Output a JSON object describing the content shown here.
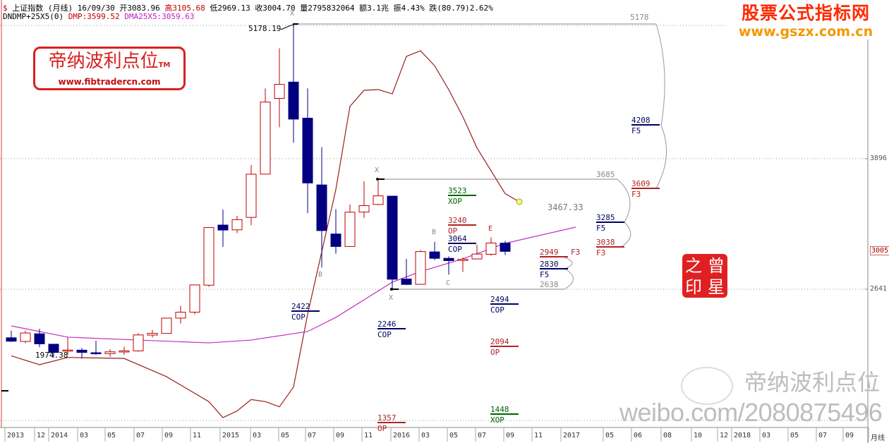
{
  "header": {
    "symbol_icon": "dollar-icon",
    "name": "上证指数",
    "period": "(月线)",
    "date": "16/09/30",
    "open": "开3083.96",
    "high": "高3105.68",
    "low": "低2969.13",
    "close": "收3004.70",
    "volume": "量2795832064",
    "amount": "额3.1兆",
    "amplitude": "振4.43%",
    "change": "跌(80.79)2.62%",
    "indicator": "DNDMP+25X5(0)",
    "dmp": "DMP:3599.52",
    "dma": "DMA25X5:3059.63"
  },
  "watermarks": {
    "site_title": "股票公式指标网",
    "site_url": "www.gszx.com.cn",
    "logo_title": "帝纳波利点位",
    "logo_tm": "TM",
    "logo_url": "www.fibtradercn.com",
    "seal": [
      "之",
      "曾",
      "印",
      "星"
    ],
    "weibo_name": "帝纳波利点位",
    "weibo_url": "weibo.com/2080875496"
  },
  "colors": {
    "up": "#c00000",
    "down": "#000080",
    "dmp": "#9b1c1c",
    "dma": "#c030c0",
    "op": "#b22222",
    "cop": "#000060",
    "xop": "#006400",
    "grid": "#888888"
  },
  "chart_data": {
    "type": "candlestick",
    "period": "monthly",
    "y_axis_ticks": [
      "3896",
      "3005",
      "2641"
    ],
    "x_axis_labels": [
      "2013",
      "12",
      "2014",
      "03",
      "05",
      "07",
      "09",
      "11",
      "2015",
      "03",
      "05",
      "07",
      "09",
      "11",
      "2016",
      "03",
      "05",
      "07",
      "09",
      "11",
      "2017",
      "05",
      "06",
      "08",
      "10",
      "12",
      "2018",
      "03",
      "05",
      "07",
      "09",
      "月线"
    ],
    "candles": [
      {
        "d": "2013-10",
        "o": 2174,
        "h": 2242,
        "l": 2134,
        "c": 2141
      },
      {
        "d": "2013-11",
        "o": 2139,
        "h": 2244,
        "l": 2123,
        "c": 2220
      },
      {
        "d": "2013-12",
        "o": 2212,
        "h": 2260,
        "l": 2084,
        "c": 2116
      },
      {
        "d": "2014-01",
        "o": 2112,
        "h": 2113,
        "l": 1984,
        "c": 2033
      },
      {
        "d": "2014-02",
        "o": 2046,
        "h": 2177,
        "l": 2012,
        "c": 2056
      },
      {
        "d": "2014-03",
        "o": 2055,
        "h": 2075,
        "l": 1974,
        "c": 2033
      },
      {
        "d": "2014-04",
        "o": 2030,
        "h": 2146,
        "l": 2010,
        "c": 2026
      },
      {
        "d": "2014-05",
        "o": 2022,
        "h": 2063,
        "l": 1991,
        "c": 2039
      },
      {
        "d": "2014-06",
        "o": 2037,
        "h": 2088,
        "l": 2010,
        "c": 2048
      },
      {
        "d": "2014-07",
        "o": 2048,
        "h": 2218,
        "l": 2041,
        "c": 2201
      },
      {
        "d": "2014-08",
        "o": 2200,
        "h": 2248,
        "l": 2176,
        "c": 2217
      },
      {
        "d": "2014-09",
        "o": 2216,
        "h": 2366,
        "l": 2216,
        "c": 2363
      },
      {
        "d": "2014-10",
        "o": 2363,
        "h": 2482,
        "l": 2311,
        "c": 2420
      },
      {
        "d": "2014-11",
        "o": 2420,
        "h": 2684,
        "l": 2400,
        "c": 2682
      },
      {
        "d": "2014-12",
        "o": 2680,
        "h": 3239,
        "l": 2664,
        "c": 3234
      },
      {
        "d": "2015-01",
        "o": 3258,
        "h": 3406,
        "l": 3049,
        "c": 3210
      },
      {
        "d": "2015-02",
        "o": 3212,
        "h": 3347,
        "l": 3180,
        "c": 3310
      },
      {
        "d": "2015-03",
        "o": 3332,
        "h": 3835,
        "l": 3257,
        "c": 3747
      },
      {
        "d": "2015-04",
        "o": 3748,
        "h": 4572,
        "l": 3745,
        "c": 4441
      },
      {
        "d": "2015-05",
        "o": 4476,
        "h": 4958,
        "l": 4199,
        "c": 4611
      },
      {
        "d": "2015-06",
        "o": 4633,
        "h": 5178,
        "l": 4050,
        "c": 4277
      },
      {
        "d": "2015-07",
        "o": 4286,
        "h": 4572,
        "l": 3373,
        "c": 3663
      },
      {
        "d": "2015-08",
        "o": 3644,
        "h": 4006,
        "l": 2850,
        "c": 3205
      },
      {
        "d": "2015-09",
        "o": 3172,
        "h": 3411,
        "l": 2983,
        "c": 3052
      },
      {
        "d": "2015-10",
        "o": 3052,
        "h": 3456,
        "l": 3051,
        "c": 3382
      },
      {
        "d": "2015-11",
        "o": 3383,
        "h": 3678,
        "l": 3327,
        "c": 3445
      },
      {
        "d": "2015-12",
        "o": 3456,
        "h": 3684,
        "l": 3450,
        "c": 3539
      },
      {
        "d": "2016-01",
        "o": 3536,
        "h": 3539,
        "l": 2638,
        "c": 2737
      },
      {
        "d": "2016-02",
        "o": 2739,
        "h": 2933,
        "l": 2682,
        "c": 2687
      },
      {
        "d": "2016-03",
        "o": 2688,
        "h": 3018,
        "l": 2688,
        "c": 3003
      },
      {
        "d": "2016-04",
        "o": 3000,
        "h": 3097,
        "l": 2920,
        "c": 2938
      },
      {
        "d": "2016-05",
        "o": 2938,
        "h": 2957,
        "l": 2781,
        "c": 2916
      },
      {
        "d": "2016-06",
        "o": 2917,
        "h": 2945,
        "l": 2807,
        "c": 2929
      },
      {
        "d": "2016-07",
        "o": 2932,
        "h": 3069,
        "l": 2929,
        "c": 2979
      },
      {
        "d": "2016-08",
        "o": 2977,
        "h": 3140,
        "l": 2965,
        "c": 3085
      },
      {
        "d": "2016-09",
        "o": 3084,
        "h": 3106,
        "l": 2969,
        "c": 3005
      }
    ],
    "series": [
      {
        "name": "DMP",
        "points": [
          [
            0,
            2000
          ],
          [
            2,
            1915
          ],
          [
            4,
            1985
          ],
          [
            8,
            1975
          ],
          [
            11,
            1800
          ],
          [
            14,
            1560
          ],
          [
            15,
            1406
          ],
          [
            16,
            1470
          ],
          [
            17,
            1580
          ],
          [
            18,
            1560
          ],
          [
            19,
            1510
          ],
          [
            20,
            1700
          ],
          [
            21,
            2400
          ],
          [
            23,
            3600
          ],
          [
            24,
            4400
          ],
          [
            25,
            4554
          ],
          [
            26,
            4561
          ],
          [
            27,
            4520
          ],
          [
            28,
            4880
          ],
          [
            29,
            4934
          ],
          [
            30,
            4790
          ],
          [
            31,
            4560
          ],
          [
            32,
            4300
          ],
          [
            33,
            4000
          ],
          [
            34,
            3780
          ],
          [
            35,
            3560
          ],
          [
            36,
            3482
          ]
        ]
      },
      {
        "name": "DMA25X5",
        "points": [
          [
            0,
            2288
          ],
          [
            4,
            2180
          ],
          [
            9,
            2152
          ],
          [
            14,
            2125
          ],
          [
            17,
            2152
          ],
          [
            21,
            2234
          ],
          [
            23,
            2370
          ],
          [
            25,
            2539
          ],
          [
            27,
            2709
          ],
          [
            29,
            2811
          ],
          [
            32,
            2933
          ],
          [
            35,
            3082
          ],
          [
            40,
            3238
          ]
        ]
      }
    ],
    "annotations": {
      "high_label": "5178.19",
      "low_label": "1974.38",
      "projection_label": "3467.33",
      "points": [
        "X",
        "X",
        "X",
        "B",
        "B",
        "C",
        "E"
      ],
      "levels": [
        {
          "value": "5178",
          "tag": "",
          "kind": "grid"
        },
        {
          "value": "4208",
          "tag": "F5",
          "kind": "cop"
        },
        {
          "value": "3685",
          "tag": "",
          "kind": "grid"
        },
        {
          "value": "3609",
          "tag": "F3",
          "kind": "op"
        },
        {
          "value": "3285",
          "tag": "F5",
          "kind": "cop"
        },
        {
          "value": "3038",
          "tag": "F3",
          "kind": "op"
        },
        {
          "value": "3523",
          "tag": "XOP",
          "kind": "xop"
        },
        {
          "value": "3240",
          "tag": "OP",
          "kind": "op"
        },
        {
          "value": "3064",
          "tag": "COP",
          "kind": "cop"
        },
        {
          "value": "2949",
          "tag": "F3",
          "kind": "op"
        },
        {
          "value": "2830",
          "tag": "F5",
          "kind": "cop"
        },
        {
          "value": "2638",
          "tag": "",
          "kind": "grid"
        },
        {
          "value": "2494",
          "tag": "COP",
          "kind": "cop"
        },
        {
          "value": "2422",
          "tag": "COP",
          "kind": "cop"
        },
        {
          "value": "2246",
          "tag": "COP",
          "kind": "cop"
        },
        {
          "value": "2094",
          "tag": "OP",
          "kind": "op"
        },
        {
          "value": "1357",
          "tag": "OP",
          "kind": "op"
        },
        {
          "value": "1448",
          "tag": "XOP",
          "kind": "xop"
        }
      ]
    }
  }
}
